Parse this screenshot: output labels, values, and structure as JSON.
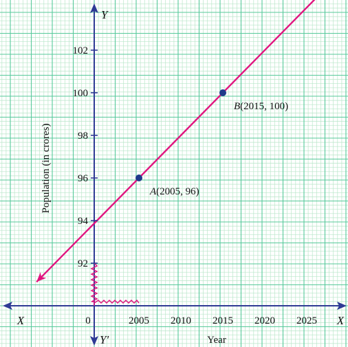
{
  "chart_data": {
    "type": "line",
    "title": "",
    "xlabel": "Year",
    "ylabel": "Population (in crores)",
    "axis_names": {
      "x_pos": "X",
      "x_neg": "X",
      "y_pos": "Y",
      "y_neg": "Y′"
    },
    "origin_label": "0",
    "x_ticks": [
      2005,
      2010,
      2015,
      2020,
      2025
    ],
    "y_ticks": [
      92,
      94,
      96,
      98,
      100,
      102
    ],
    "grid": true,
    "axis_breaks": true,
    "series": [
      {
        "points": [
          {
            "x": 2005,
            "y": 96,
            "label": "A(2005, 96)",
            "name": "A",
            "coords": "(2005, 96)"
          },
          {
            "x": 2015,
            "y": 100,
            "label": "B(2015, 100)",
            "name": "B",
            "coords": "(2015, 100)"
          }
        ],
        "line": {
          "slope": 0.4,
          "intercept_at_2000": 94,
          "arrows": "both"
        }
      }
    ],
    "colors": {
      "grid_minor": "#b9e6c9",
      "grid_major": "#57c99a",
      "axis": "#2e3a94",
      "line": "#e0157f",
      "point": "#1f3a8a"
    }
  }
}
